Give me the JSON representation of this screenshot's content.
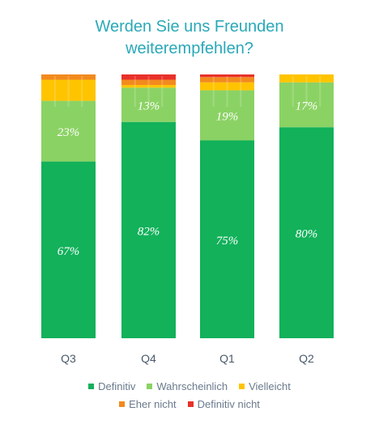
{
  "chart_data": {
    "type": "bar",
    "stacked": true,
    "title_lines": [
      "Werden Sie uns Freunden",
      "weiterempfehlen?"
    ],
    "categories": [
      "Q3",
      "Q4",
      "Q1",
      "Q2"
    ],
    "series": [
      {
        "name": "Definitiv",
        "color": "#12b15a",
        "values": [
          67,
          82,
          75,
          80
        ]
      },
      {
        "name": "Wahrscheinlich",
        "color": "#8bd264",
        "values": [
          23,
          13,
          19,
          17
        ]
      },
      {
        "name": "Vielleicht",
        "color": "#ffc400",
        "values": [
          8,
          1,
          3,
          3
        ]
      },
      {
        "name": "Eher nicht",
        "color": "#f28a1e",
        "values": [
          2,
          2,
          2,
          0
        ]
      },
      {
        "name": "Definitiv nicht",
        "color": "#e8312a",
        "values": [
          0,
          2,
          1,
          0
        ]
      }
    ],
    "data_labels": {
      "Definitiv": [
        "67%",
        "82%",
        "75%",
        "80%"
      ],
      "Wahrscheinlich": [
        "23%",
        "13%",
        "19%",
        "17%"
      ]
    },
    "ylim": [
      0,
      100
    ],
    "legend_placement": "bottom",
    "grid": false
  }
}
